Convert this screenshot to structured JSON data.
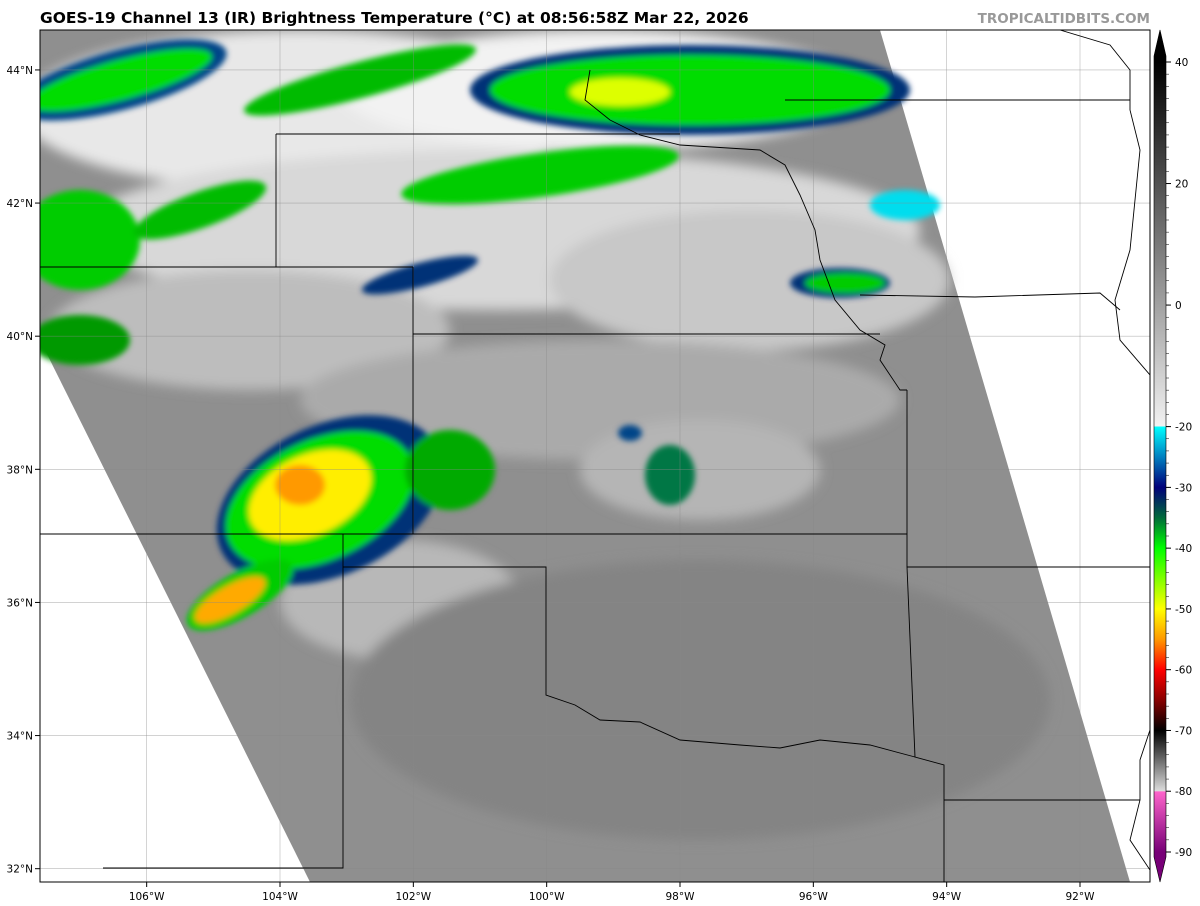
{
  "header": {
    "title": "GOES-19 Channel 13 (IR) Brightness Temperature (°C) at 08:56:58Z Mar 22, 2026",
    "credit": "TROPICALTIDBITS.COM"
  },
  "map": {
    "lat_labels": [
      "44°N",
      "42°N",
      "40°N",
      "38°N",
      "36°N",
      "34°N",
      "32°N"
    ],
    "lat_values": [
      44,
      42,
      40,
      38,
      36,
      34,
      32
    ],
    "lon_labels": [
      "106°W",
      "104°W",
      "102°W",
      "100°W",
      "98°W",
      "96°W",
      "94°W",
      "92°W"
    ],
    "lon_values": [
      -106,
      -104,
      -102,
      -100,
      -98,
      -96,
      -94,
      -92
    ],
    "extent": {
      "lon_min": -107.6,
      "lon_max": -90.95,
      "lat_min": 31.8,
      "lat_max": 44.6
    }
  },
  "colorbar": {
    "tick_labels": [
      "40",
      "20",
      "0",
      "-20",
      "-30",
      "-40",
      "-50",
      "-60",
      "-70",
      "-80",
      "-90"
    ],
    "tick_values": [
      40,
      20,
      0,
      -20,
      -30,
      -40,
      -50,
      -60,
      -70,
      -80,
      -90
    ],
    "range": [
      -90,
      40
    ],
    "stops": [
      {
        "v": 40,
        "c": "#000000"
      },
      {
        "v": -20,
        "c": "#f2f2f2"
      },
      {
        "v": -20.01,
        "c": "#00ffff"
      },
      {
        "v": -25,
        "c": "#0080c0"
      },
      {
        "v": -30,
        "c": "#00007a"
      },
      {
        "v": -35,
        "c": "#006a3a"
      },
      {
        "v": -40,
        "c": "#00ff00"
      },
      {
        "v": -45,
        "c": "#80ff00"
      },
      {
        "v": -50,
        "c": "#ffff00"
      },
      {
        "v": -55,
        "c": "#ff9900"
      },
      {
        "v": -60,
        "c": "#ff0000"
      },
      {
        "v": -65,
        "c": "#880000"
      },
      {
        "v": -70,
        "c": "#000000"
      },
      {
        "v": -80,
        "c": "#dddddd"
      },
      {
        "v": -80.01,
        "c": "#ff66cc"
      },
      {
        "v": -90,
        "c": "#770077"
      }
    ]
  }
}
